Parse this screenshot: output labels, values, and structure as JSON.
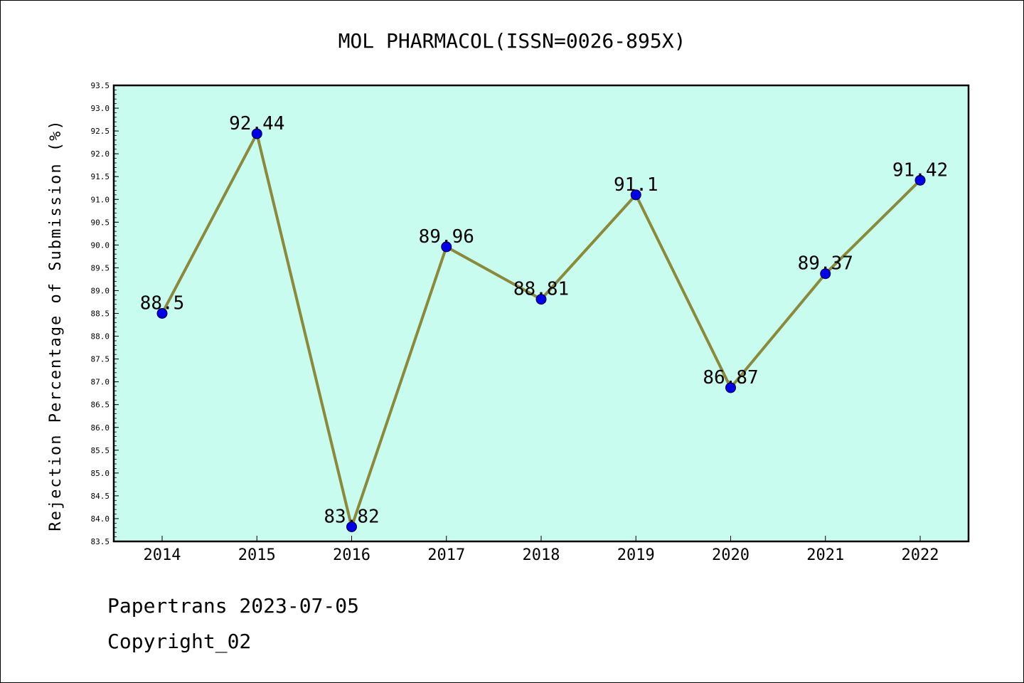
{
  "chart_data": {
    "type": "line",
    "title": "MOL PHARMACOL(ISSN=0026-895X)",
    "ylabel": "Rejection Percentage of Submission (%)",
    "xlabel": "",
    "categories": [
      "2014",
      "2015",
      "2016",
      "2017",
      "2018",
      "2019",
      "2020",
      "2021",
      "2022"
    ],
    "values": [
      88.5,
      92.44,
      83.82,
      89.96,
      88.81,
      91.1,
      86.87,
      89.37,
      91.42
    ],
    "data_labels": [
      "88.5",
      "92.44",
      "83.82",
      "89.96",
      "88.81",
      "91.1",
      "86.87",
      "89.37",
      "91.42"
    ],
    "ylim": [
      83.5,
      93.5
    ],
    "yticks": [
      "83.5",
      "84.0",
      "84.5",
      "85.0",
      "85.5",
      "86.0",
      "86.5",
      "87.0",
      "87.5",
      "88.0",
      "88.5",
      "89.0",
      "89.5",
      "90.0",
      "90.5",
      "91.0",
      "91.5",
      "92.0",
      "92.5",
      "93.0",
      "93.5"
    ],
    "grid": false,
    "colors": {
      "plot_background": "#c8fcee",
      "line": "#8b8a3a",
      "marker": "#0000ee"
    }
  },
  "footer": {
    "line1": "Papertrans 2023-07-05",
    "line2": "Copyright_02"
  }
}
